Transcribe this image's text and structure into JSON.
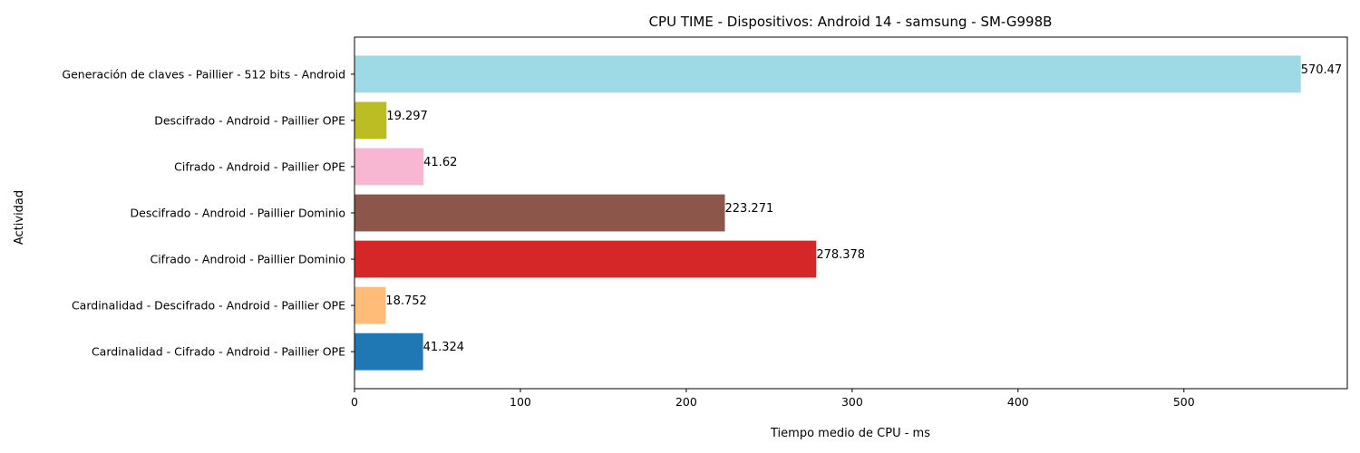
{
  "chart_data": {
    "type": "bar",
    "orientation": "horizontal",
    "title": "CPU TIME - Dispositivos: Android 14 - samsung - SM-G998B",
    "xlabel": "Tiempo medio de CPU - ms",
    "ylabel": "Actividad",
    "xlim": [
      0,
      598.5
    ],
    "xticks": [
      0,
      100,
      200,
      300,
      400,
      500
    ],
    "grid": false,
    "categories": [
      "Cardinalidad - Cifrado - Android - Paillier OPE",
      "Cardinalidad - Descifrado - Android - Paillier OPE",
      "Cifrado - Android - Paillier Dominio",
      "Descifrado - Android - Paillier Dominio",
      "Cifrado - Android - Paillier OPE",
      "Descifrado - Android - Paillier OPE",
      "Generación de claves - Paillier - 512 bits - Android"
    ],
    "values": [
      41.324,
      18.752,
      278.378,
      223.271,
      41.62,
      19.297,
      570.47
    ],
    "value_labels": [
      "41.324",
      "18.752",
      "278.378",
      "223.271",
      "41.62",
      "19.297",
      "570.47"
    ],
    "colors": [
      "#1f77b4",
      "#ffbb78",
      "#d62728",
      "#8c564b",
      "#f7b6d2",
      "#bcbd22",
      "#9edae5"
    ]
  }
}
